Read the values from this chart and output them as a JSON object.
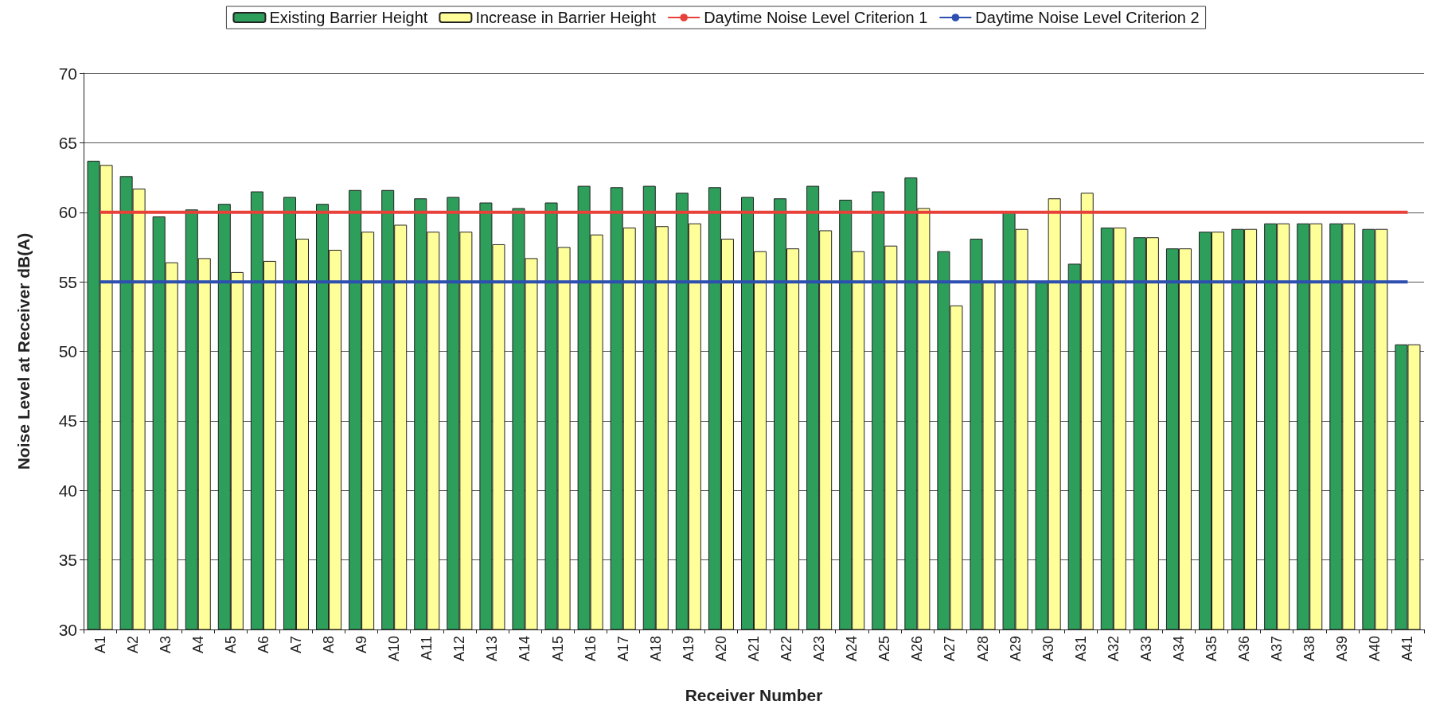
{
  "chart_data": {
    "type": "bar",
    "xlabel": "Receiver Number",
    "ylabel": "Noise Level at Receiver dB(A)",
    "categories": [
      "A1",
      "A2",
      "A3",
      "A4",
      "A5",
      "A6",
      "A7",
      "A8",
      "A9",
      "A10",
      "A11",
      "A12",
      "A13",
      "A14",
      "A15",
      "A16",
      "A17",
      "A18",
      "A19",
      "A20",
      "A21",
      "A22",
      "A23",
      "A24",
      "A25",
      "A26",
      "A27",
      "A28",
      "A29",
      "A30",
      "A31",
      "A32",
      "A33",
      "A34",
      "A35",
      "A36",
      "A37",
      "A38",
      "A39",
      "A40",
      "A41"
    ],
    "series": [
      {
        "name": "Existing Barrier Height",
        "color": "#2e9e5b",
        "values": [
          63.7,
          62.6,
          59.7,
          60.2,
          60.6,
          61.5,
          61.1,
          60.6,
          61.6,
          61.6,
          61.0,
          61.1,
          60.7,
          60.3,
          60.7,
          61.9,
          61.8,
          61.9,
          61.4,
          61.8,
          61.1,
          61.0,
          61.9,
          60.9,
          61.5,
          62.5,
          57.2,
          58.1,
          60.0,
          55.0,
          56.3,
          58.9,
          58.2,
          57.4,
          58.6,
          58.8,
          59.2,
          59.2,
          59.2,
          58.8,
          50.5
        ]
      },
      {
        "name": "Increase in Barrier Height",
        "color": "#ffff99",
        "values": [
          63.4,
          61.7,
          56.4,
          56.7,
          55.7,
          56.5,
          58.1,
          57.3,
          58.6,
          59.1,
          58.6,
          58.6,
          57.7,
          56.7,
          57.5,
          58.4,
          58.9,
          59.0,
          59.2,
          58.1,
          57.2,
          57.4,
          58.7,
          57.2,
          57.6,
          60.3,
          53.3,
          55.0,
          58.8,
          61.0,
          61.4,
          58.9,
          58.2,
          57.4,
          58.6,
          58.8,
          59.2,
          59.2,
          59.2,
          58.8,
          50.5
        ]
      },
      {
        "name": "Daytime Noise Level Criterion 1",
        "type": "line",
        "color": "#e8413a",
        "values": [
          60,
          60,
          60,
          60,
          60,
          60,
          60,
          60,
          60,
          60,
          60,
          60,
          60,
          60,
          60,
          60,
          60,
          60,
          60,
          60,
          60,
          60,
          60,
          60,
          60,
          60,
          60,
          60,
          60,
          60,
          60,
          60,
          60,
          60,
          60,
          60,
          60,
          60,
          60,
          60,
          60
        ]
      },
      {
        "name": "Daytime Noise Level Criterion 2",
        "type": "line",
        "color": "#2c4fb0",
        "values": [
          55,
          55,
          55,
          55,
          55,
          55,
          55,
          55,
          55,
          55,
          55,
          55,
          55,
          55,
          55,
          55,
          55,
          55,
          55,
          55,
          55,
          55,
          55,
          55,
          55,
          55,
          55,
          55,
          55,
          55,
          55,
          55,
          55,
          55,
          55,
          55,
          55,
          55,
          55,
          55,
          55
        ]
      }
    ],
    "ylim": [
      30,
      70
    ],
    "yticks": [
      30,
      35,
      40,
      45,
      50,
      55,
      60,
      65,
      70
    ],
    "grid": "y",
    "legend": "top",
    "marker": "none"
  }
}
